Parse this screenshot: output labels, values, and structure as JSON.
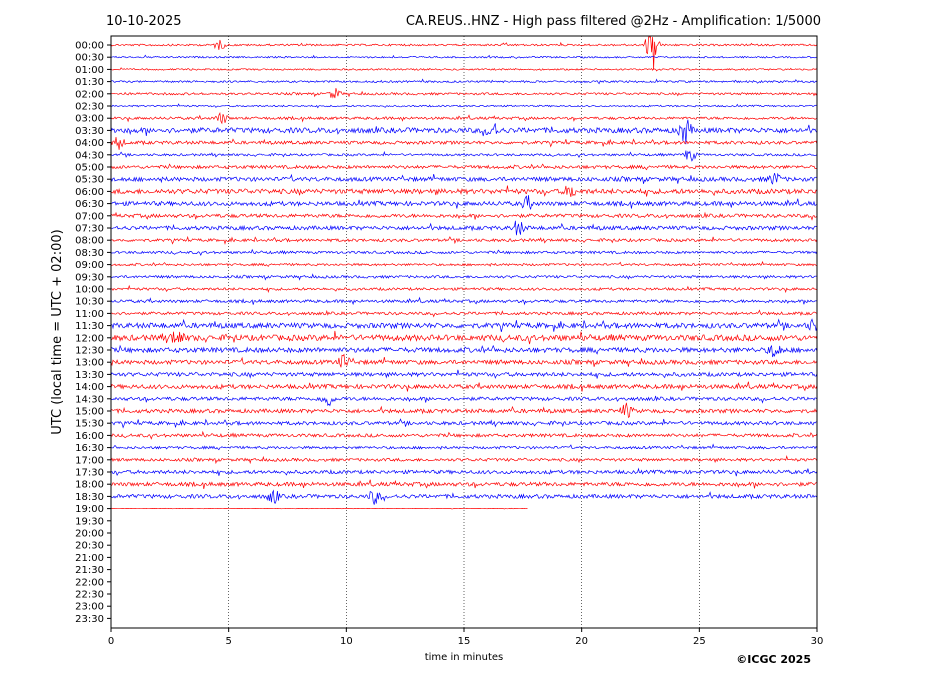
{
  "header": {
    "date": "10-10-2025",
    "station_title": "CA.REUS..HNZ - High pass filtered @2Hz - Amplification: 1/5000"
  },
  "copyright": "©ICGC 2025",
  "colors": {
    "even_trace": "#ff0000",
    "odd_trace": "#0000ff",
    "gridline": "#000000"
  },
  "chart_data": {
    "type": "line",
    "subtype": "helicorder",
    "xlabel": "time in minutes",
    "ylabel": "UTC (local time = UTC + 02:00)",
    "xlim": [
      0,
      30
    ],
    "x_ticks": [
      0,
      5,
      10,
      15,
      20,
      25,
      30
    ],
    "x_vertical_gridlines": [
      5,
      10,
      15,
      20,
      25
    ],
    "grid": "vertical dotted at x ticks",
    "row_labels": [
      "00:00",
      "00:30",
      "01:00",
      "01:30",
      "02:00",
      "02:30",
      "03:00",
      "03:30",
      "04:00",
      "04:30",
      "05:00",
      "05:30",
      "06:00",
      "06:30",
      "07:00",
      "07:30",
      "08:00",
      "08:30",
      "09:00",
      "09:30",
      "10:00",
      "10:30",
      "11:00",
      "11:30",
      "12:00",
      "12:30",
      "13:00",
      "13:30",
      "14:00",
      "14:30",
      "15:00",
      "15:30",
      "16:00",
      "16:30",
      "17:00",
      "17:30",
      "18:00",
      "18:30",
      "19:00",
      "19:30",
      "20:00",
      "20:30",
      "21:00",
      "21:30",
      "22:00",
      "22:30",
      "23:00",
      "23:30"
    ],
    "recorded_rows": 39,
    "last_row_end_minute": 17.7,
    "row_activity": [
      0.6,
      0.5,
      0.5,
      0.6,
      0.7,
      0.5,
      0.8,
      1.6,
      1.0,
      0.7,
      1.0,
      1.3,
      1.5,
      1.3,
      1.1,
      1.2,
      0.9,
      0.8,
      0.7,
      0.8,
      0.8,
      0.9,
      0.9,
      1.6,
      1.8,
      1.5,
      1.3,
      1.2,
      1.3,
      1.1,
      1.2,
      1.1,
      1.0,
      0.8,
      0.9,
      1.1,
      1.2,
      1.2,
      0.1
    ],
    "events": [
      {
        "row": 0,
        "minute": 4.6,
        "amplitude": 1.2
      },
      {
        "row": 0,
        "minute": 23.0,
        "amplitude": 8
      },
      {
        "row": 4,
        "minute": 9.5,
        "amplitude": 1.4
      },
      {
        "row": 6,
        "minute": 4.7,
        "amplitude": 1.5
      },
      {
        "row": 7,
        "minute": 16.2,
        "amplitude": 2.2
      },
      {
        "row": 7,
        "minute": 24.4,
        "amplitude": 3.5
      },
      {
        "row": 8,
        "minute": 0.3,
        "amplitude": 1.8
      },
      {
        "row": 9,
        "minute": 24.6,
        "amplitude": 1.8
      },
      {
        "row": 11,
        "minute": 28.2,
        "amplitude": 1.6
      },
      {
        "row": 12,
        "minute": 19.5,
        "amplitude": 1.6
      },
      {
        "row": 13,
        "minute": 17.7,
        "amplitude": 1.6
      },
      {
        "row": 15,
        "minute": 17.3,
        "amplitude": 2.0
      },
      {
        "row": 23,
        "minute": 29.9,
        "amplitude": 1.8
      },
      {
        "row": 24,
        "minute": 2.8,
        "amplitude": 2.2
      },
      {
        "row": 25,
        "minute": 28.2,
        "amplitude": 2.0
      },
      {
        "row": 26,
        "minute": 9.9,
        "amplitude": 1.8
      },
      {
        "row": 29,
        "minute": 9.2,
        "amplitude": 2.0
      },
      {
        "row": 30,
        "minute": 21.9,
        "amplitude": 1.8
      },
      {
        "row": 37,
        "minute": 6.9,
        "amplitude": 1.8
      },
      {
        "row": 37,
        "minute": 11.2,
        "amplitude": 1.8
      }
    ]
  }
}
